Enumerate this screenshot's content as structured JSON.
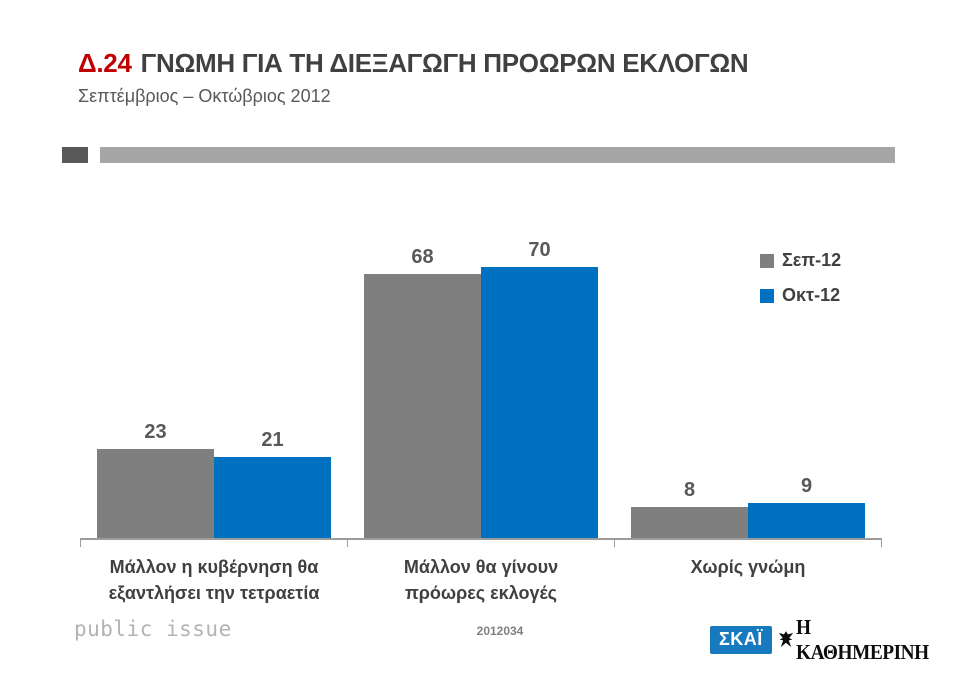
{
  "header": {
    "code": "Δ.24",
    "title": "ΓΝΩΜΗ ΓΙΑ ΤΗ ΔΙΕΞΑΓΩΓΗ ΠΡΟΩΡΩΝ ΕΚΛΟΓΩΝ",
    "subtitle": "Σεπτέμβριος – Οκτώβριος 2012"
  },
  "chart_data": {
    "type": "bar",
    "title": "Δ.24 ΓΝΩΜΗ ΓΙΑ ΤΗ ΔΙΕΞΑΓΩΓΗ ΠΡΟΩΡΩΝ ΕΚΛΟΓΩΝ",
    "subtitle": "Σεπτέμβριος – Οκτώβριος 2012",
    "categories": [
      "Μάλλον η κυβέρνηση θα εξαντλήσει την τετραετία",
      "Μάλλον θα γίνουν πρόωρες εκλογές",
      "Χωρίς γνώμη"
    ],
    "category_lines": [
      [
        "Μάλλον η κυβέρνηση θα",
        "εξαντλήσει την τετραετία"
      ],
      [
        "Μάλλον θα γίνουν",
        "πρόωρες εκλογές"
      ],
      [
        "Χωρίς γνώμη"
      ]
    ],
    "series": [
      {
        "name": "Σεπ-12",
        "color": "#7F7F7F",
        "values": [
          23,
          68,
          8
        ]
      },
      {
        "name": "Οκτ-12",
        "color": "#0070C0",
        "values": [
          21,
          70,
          9
        ]
      }
    ],
    "xlabel": "",
    "ylabel": "",
    "ylim": [
      0,
      80
    ],
    "grid": false,
    "legend_position": "right",
    "data_labels": true
  },
  "footer": {
    "brand": "public issue",
    "study_code": "2012034",
    "skai_label": "ΣΚΑΪ",
    "kathimerini_label": "Η ΚΑΘΗΜΕΡΙΝΗ"
  },
  "colors": {
    "accent_red": "#C00000",
    "title_gray": "#404040",
    "series_sep12": "#7F7F7F",
    "series_okt12": "#0070C0",
    "deco_dark": "#595959",
    "deco_light": "#A6A6A6",
    "axis_gray": "#9C9C9C",
    "skai_blue": "#1779BE"
  }
}
